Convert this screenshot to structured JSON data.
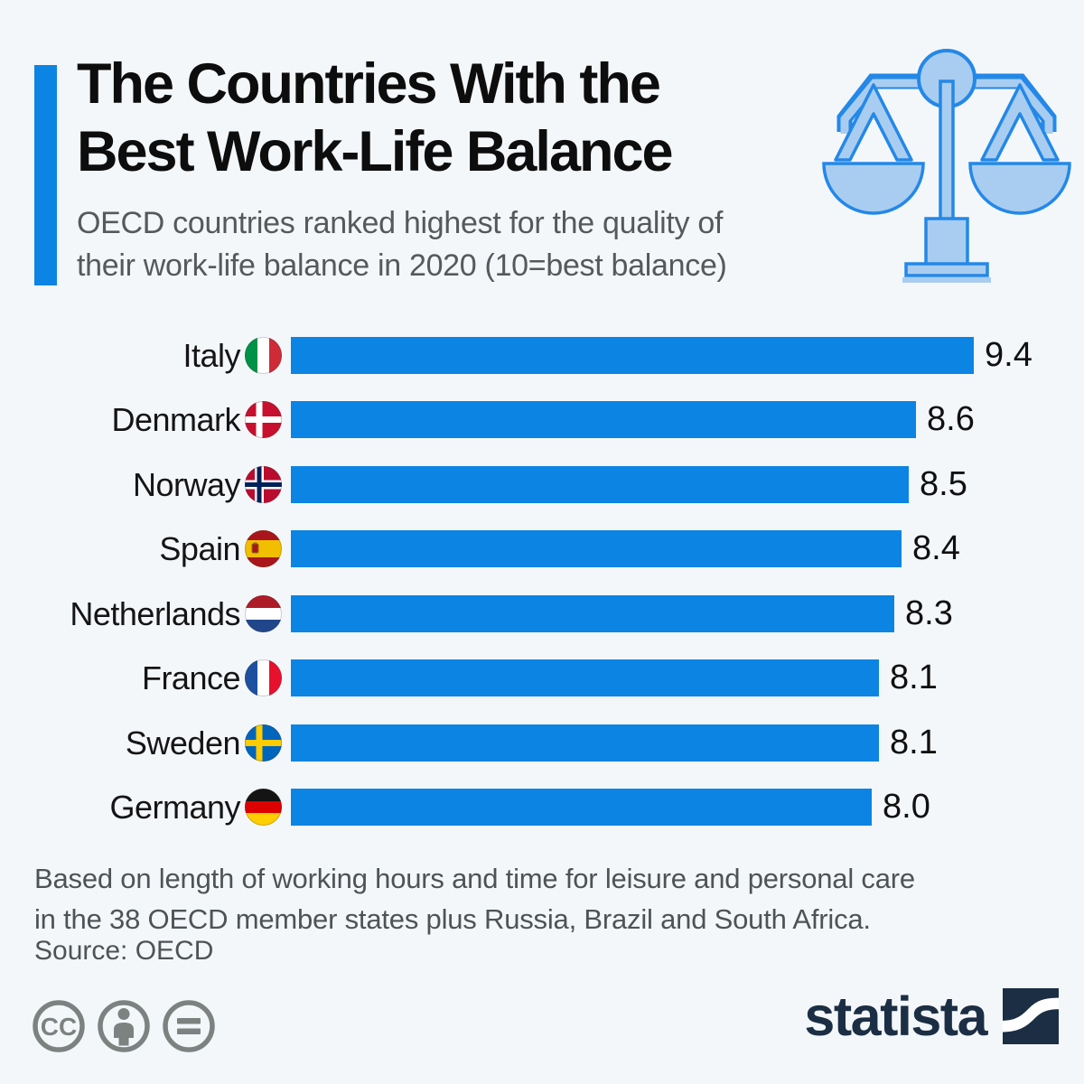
{
  "header": {
    "title_lines": [
      "The Countries With the",
      "Best Work-Life Balance"
    ],
    "subtitle_lines": [
      "OECD countries ranked highest for the quality of",
      "their work-life balance in 2020 (10=best balance)"
    ]
  },
  "chart_data": {
    "type": "bar",
    "orientation": "horizontal",
    "title": "The Countries With the Best Work-Life Balance",
    "subtitle": "OECD countries ranked highest for the quality of their work-life balance in 2020 (10=best balance)",
    "categories": [
      "Italy",
      "Denmark",
      "Norway",
      "Spain",
      "Netherlands",
      "France",
      "Sweden",
      "Germany"
    ],
    "values": [
      9.4,
      8.6,
      8.5,
      8.4,
      8.3,
      8.1,
      8.1,
      8.0
    ],
    "flags": [
      "italy",
      "denmark",
      "norway",
      "spain",
      "netherlands",
      "france",
      "sweden",
      "germany"
    ],
    "xlim": [
      0,
      9.4
    ],
    "grid": false,
    "legend": false,
    "bar_color": "#0c84e4",
    "value_label_position": "end-of-bar"
  },
  "footer": {
    "note_lines": [
      "Based on length of working hours and time for leisure and personal care",
      "in the 38 OECD member states plus Russia, Brazil and South Africa."
    ],
    "source": "Source: OECD"
  },
  "branding": {
    "logo_text": "statista",
    "license_icons": [
      "cc-icon",
      "attribution-icon",
      "no-derivatives-icon"
    ]
  },
  "colors": {
    "background": "#f4f7fa",
    "accent": "#0c84e4",
    "bar": "#0c84e4",
    "title": "#0d0d0d",
    "subtitle": "#56595c",
    "footer_text": "#4e5356",
    "license_gray": "#7c8280",
    "logo_navy": "#1b2e44",
    "scales_fill": "#a9cdf0",
    "scales_stroke": "#2388e8"
  }
}
